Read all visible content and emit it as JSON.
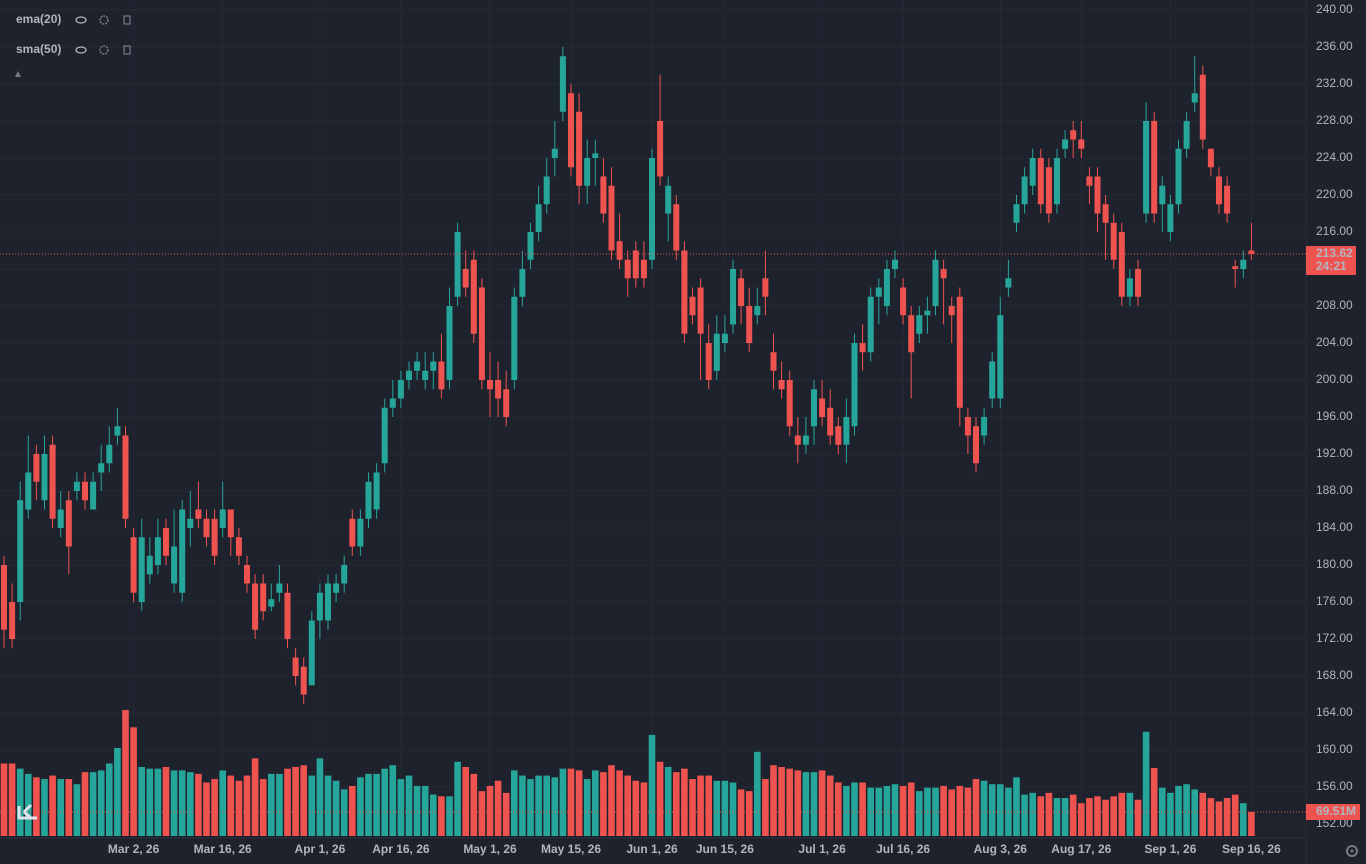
{
  "chart_data": {
    "type": "candlestick",
    "indicators": [
      {
        "name": "ema(20)",
        "color": "#2196f3"
      },
      {
        "name": "sma(50)",
        "color": "#ff9800"
      }
    ],
    "categories": [
      null,
      null,
      null,
      null,
      null,
      null,
      null,
      null,
      null,
      null,
      null,
      null,
      null,
      null,
      null,
      null,
      "Mar 2, 26",
      null,
      null,
      null,
      null,
      null,
      null,
      null,
      null,
      null,
      null,
      "Mar 16, 26",
      null,
      null,
      null,
      null,
      null,
      null,
      null,
      null,
      null,
      null,
      null,
      "Apr 1, 26",
      null,
      null,
      null,
      null,
      null,
      null,
      null,
      null,
      null,
      "Apr 16, 26",
      null,
      null,
      null,
      null,
      null,
      null,
      null,
      null,
      null,
      null,
      "May 1, 26",
      null,
      null,
      null,
      null,
      null,
      null,
      null,
      null,
      null,
      "May 15, 26",
      null,
      null,
      null,
      null,
      null,
      null,
      null,
      null,
      null,
      "Jun 1, 26",
      null,
      null,
      null,
      null,
      null,
      null,
      null,
      null,
      "Jun 15, 26",
      null,
      null,
      null,
      null,
      null,
      null,
      null,
      null,
      null,
      null,
      null,
      "Jul 1, 26",
      null,
      null,
      null,
      null,
      null,
      null,
      null,
      null,
      null,
      "Jul 16, 26",
      null,
      null,
      null,
      null,
      null,
      null,
      null,
      null,
      null,
      null,
      null,
      "Aug 3, 26",
      null,
      null,
      null,
      null,
      null,
      null,
      null,
      null,
      null,
      "Aug 17, 26",
      null,
      null,
      null,
      null,
      null,
      null,
      null,
      null,
      null,
      null,
      "Sep 1, 26",
      null,
      null,
      null,
      null,
      null,
      null,
      null,
      null,
      null,
      "Sep 16, 26"
    ],
    "open": [
      180,
      176,
      176,
      186,
      192,
      187,
      193,
      184,
      187,
      188,
      189,
      186,
      190,
      191,
      194,
      194,
      183,
      176,
      179,
      180,
      184,
      178,
      177,
      184,
      186,
      185,
      185,
      184,
      186,
      183,
      180,
      178,
      178,
      175.5,
      177,
      177,
      170,
      169,
      167,
      174,
      174,
      177,
      178,
      185,
      182,
      185,
      186,
      191,
      197,
      198,
      200,
      201,
      200,
      201,
      202,
      200,
      209,
      212,
      213,
      210,
      200,
      200,
      199,
      200,
      209,
      213,
      216,
      219,
      224,
      229,
      231,
      229,
      221,
      224,
      222,
      221,
      215,
      213,
      214,
      213,
      213,
      228,
      218,
      219,
      214,
      209,
      210,
      204,
      201,
      204,
      206,
      211,
      208,
      207,
      211,
      203,
      200,
      200,
      194,
      193,
      195,
      198,
      197,
      195,
      193,
      195,
      204,
      203,
      209,
      208,
      212,
      210,
      207,
      205,
      207,
      208,
      212,
      208,
      209,
      196,
      195,
      194,
      198,
      198,
      210,
      217,
      219,
      221,
      224,
      223,
      219,
      225,
      227,
      226,
      222,
      222,
      219,
      217,
      216,
      209,
      212,
      218,
      228,
      219,
      216,
      219,
      225,
      230,
      233,
      225,
      222,
      221,
      212.3,
      212,
      214
    ],
    "high": [
      181,
      178,
      189,
      194,
      193,
      194,
      194,
      188,
      188,
      190,
      190,
      190,
      193,
      195,
      197,
      195,
      184,
      185,
      183,
      185,
      185,
      186,
      187,
      188,
      189,
      186,
      186,
      189,
      186,
      184,
      181,
      179,
      179,
      178,
      180,
      178,
      171,
      170,
      175,
      178,
      179,
      179,
      181,
      186,
      186,
      190,
      191,
      198,
      200,
      201,
      202,
      203,
      203,
      203,
      205,
      210,
      217,
      214,
      214,
      211,
      203,
      202,
      201,
      210,
      214,
      217,
      221,
      224,
      228,
      236,
      232,
      231,
      226,
      226,
      224,
      223,
      218,
      214,
      215,
      215,
      225,
      233,
      222,
      220,
      215,
      210,
      211,
      206,
      207,
      207,
      213,
      212,
      210,
      210,
      214,
      205,
      202,
      201,
      196,
      196,
      200,
      200,
      199,
      196,
      198,
      205,
      206,
      210,
      211,
      213,
      214,
      211,
      208,
      208,
      209,
      214,
      213,
      209,
      210,
      197,
      196,
      197,
      203,
      209,
      213,
      220,
      223,
      225,
      225,
      224,
      225,
      227,
      228,
      228,
      223,
      223,
      220,
      218,
      217,
      212,
      213,
      230,
      229,
      222,
      220,
      226,
      229,
      235,
      234,
      225,
      223,
      222,
      213,
      214,
      217
    ],
    "low": [
      171,
      171,
      174,
      185,
      187,
      186,
      184,
      183,
      179,
      187,
      186,
      186,
      188,
      190,
      193,
      184,
      176,
      175,
      178,
      179,
      180,
      177,
      176,
      182,
      184,
      182,
      180,
      183,
      181,
      180,
      177,
      172,
      174,
      175,
      176,
      171,
      167,
      165,
      167,
      172,
      173,
      176,
      177,
      181,
      181,
      184,
      185,
      190,
      196,
      197,
      199,
      200,
      199,
      199,
      198,
      199,
      208,
      209,
      204,
      199,
      196,
      196,
      195,
      199,
      208,
      212,
      215,
      218,
      222,
      228,
      222,
      219,
      219,
      221,
      217,
      213,
      212,
      209,
      210,
      210,
      212,
      221,
      215,
      213,
      204,
      206,
      200,
      199,
      200,
      203,
      205,
      206,
      203,
      206,
      207,
      199,
      198,
      194,
      191,
      192,
      193,
      195,
      193,
      192,
      191,
      194,
      201,
      202,
      206,
      207,
      211,
      206,
      198,
      204,
      205,
      207,
      206,
      204,
      195,
      192,
      190,
      193,
      197,
      197,
      209,
      216,
      218,
      220,
      218,
      217,
      218,
      224,
      224,
      224,
      219,
      216,
      213,
      212,
      208,
      208,
      208,
      217,
      217,
      216,
      215,
      218,
      224,
      229,
      225,
      222,
      218,
      217,
      210,
      211,
      213
    ],
    "close": [
      173,
      172,
      187,
      190,
      189,
      192,
      185,
      186,
      182,
      189,
      187,
      189,
      191,
      193,
      195,
      185,
      177,
      183,
      181,
      183,
      181,
      182,
      186,
      185,
      185,
      183,
      181,
      186,
      183,
      181,
      178,
      173,
      175,
      176.3,
      178,
      172,
      168,
      166,
      174,
      177,
      178,
      178,
      180,
      182,
      185,
      189,
      190,
      197,
      198,
      200,
      201,
      202,
      201,
      202,
      199,
      208,
      216,
      210,
      205,
      200,
      199,
      198,
      196,
      209,
      212,
      216,
      219,
      222,
      225,
      235,
      223,
      221,
      224,
      224.5,
      218,
      214,
      213,
      211,
      211,
      211,
      224,
      222,
      221,
      214,
      205,
      207,
      205,
      200,
      205,
      205,
      212,
      208,
      204,
      208,
      209,
      201,
      199,
      195,
      193,
      194,
      199,
      196,
      194,
      193,
      196,
      204,
      203,
      209,
      210,
      212,
      213,
      207,
      203,
      207,
      207.5,
      213,
      211,
      207,
      197,
      194,
      191,
      196,
      202,
      207,
      211,
      219,
      222,
      224,
      219,
      218,
      224,
      226,
      226,
      225,
      221,
      218,
      217,
      213,
      209,
      211,
      209,
      228,
      218,
      221,
      219,
      225,
      228,
      231,
      226,
      223,
      219,
      218,
      212,
      213,
      213.62
    ],
    "up_color": "#26a69a",
    "down_color": "#ef5350",
    "ylim": [
      152,
      240
    ],
    "yticks": [
      {
        "value": 240,
        "label": "240.00"
      },
      {
        "value": 236,
        "label": "236.00"
      },
      {
        "value": 232,
        "label": "232.00"
      },
      {
        "value": 228,
        "label": "228.00"
      },
      {
        "value": 224,
        "label": "224.00"
      },
      {
        "value": 220,
        "label": "220.00"
      },
      {
        "value": 216,
        "label": "216.00"
      },
      {
        "value": 212,
        "label": "212.00"
      },
      {
        "value": 208,
        "label": "208.00"
      },
      {
        "value": 204,
        "label": "204.00"
      },
      {
        "value": 200,
        "label": "200.00"
      },
      {
        "value": 196,
        "label": "196.00"
      },
      {
        "value": 192,
        "label": "192.00"
      },
      {
        "value": 188,
        "label": "188.00"
      },
      {
        "value": 184,
        "label": "184.00"
      },
      {
        "value": 180,
        "label": "180.00"
      },
      {
        "value": 176,
        "label": "176.00"
      },
      {
        "value": 172,
        "label": "172.00"
      },
      {
        "value": 168,
        "label": "168.00"
      },
      {
        "value": 164,
        "label": "164.00"
      },
      {
        "value": 160,
        "label": "160.00"
      },
      {
        "value": 156,
        "label": "156.00"
      },
      {
        "value": 152,
        "label": "152.00"
      }
    ],
    "grid": true,
    "last_price": 213.62,
    "countdown": "24:21",
    "volume": {
      "values": [
        210,
        210,
        195,
        180,
        170,
        165,
        175,
        165,
        165,
        150,
        185,
        185,
        190,
        210,
        255,
        365,
        315,
        200,
        195,
        195,
        200,
        190,
        190,
        185,
        180,
        155,
        165,
        190,
        175,
        160,
        175,
        225,
        165,
        180,
        180,
        195,
        200,
        205,
        175,
        225,
        175,
        160,
        135,
        145,
        170,
        180,
        180,
        195,
        205,
        165,
        175,
        145,
        145,
        120,
        115,
        115,
        215,
        200,
        180,
        130,
        145,
        160,
        125,
        190,
        175,
        165,
        175,
        175,
        170,
        195,
        195,
        190,
        165,
        190,
        185,
        205,
        190,
        175,
        160,
        155,
        293,
        215,
        200,
        185,
        195,
        165,
        175,
        175,
        160,
        160,
        155,
        135,
        130,
        244,
        165,
        205,
        200,
        195,
        190,
        185,
        185,
        190,
        175,
        155,
        145,
        155,
        155,
        140,
        140,
        145,
        150,
        145,
        155,
        130,
        140,
        140,
        145,
        135,
        145,
        140,
        165,
        160,
        150,
        150,
        140,
        170,
        120,
        125,
        115,
        125,
        110,
        110,
        120,
        95,
        110,
        115,
        105,
        115,
        125,
        125,
        105,
        302,
        197,
        140,
        125,
        145,
        150,
        135,
        125,
        110,
        100,
        110,
        120,
        95,
        69.51
      ],
      "last_label": "69.51M"
    }
  }
}
